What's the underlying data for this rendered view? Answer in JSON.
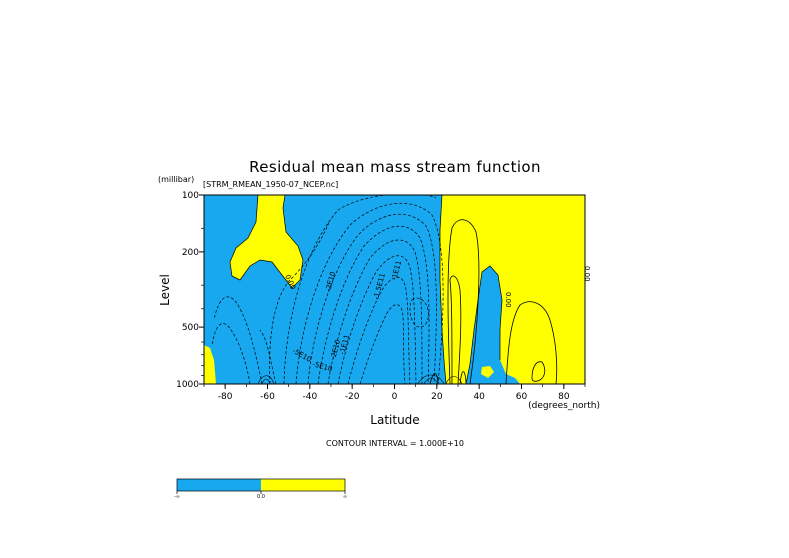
{
  "chart_data": {
    "type": "contour",
    "title": "Residual mean mass stream function",
    "subtitle": "[STRM_RMEAN_1950-07_NCEP.nc]",
    "xlabel": "Latitude",
    "x_units": "(degrees_north)",
    "ylabel": "Level",
    "y_units": "(millibar)",
    "xlim": [
      -90,
      90
    ],
    "ylim": [
      1000,
      100
    ],
    "y_scale": "log",
    "x_ticks": [
      -80,
      -60,
      -40,
      -20,
      0,
      20,
      40,
      60,
      80
    ],
    "x_tick_labels": [
      "-80",
      "-60",
      "-40",
      "-20",
      "0",
      "20",
      "40",
      "60",
      "80"
    ],
    "y_ticks": [
      100,
      200,
      500,
      1000
    ],
    "y_tick_labels": [
      "100",
      "200",
      "500",
      "1000"
    ],
    "contour_interval_text": "CONTOUR INTERVAL = 1.000E+10",
    "contour_labels": [
      "-5E10",
      "-5E10",
      "-2E10",
      "-2E10",
      "-1E11",
      "-1.5E11",
      "-1E11",
      "0.00",
      "0.00",
      "0.00"
    ],
    "fill_colors": {
      "negative": "#18a8f0",
      "positive": "#ffff00"
    },
    "colorbar": {
      "segments": [
        "#18a8f0",
        "#ffff00"
      ],
      "labels": [
        "-∞",
        "0.0",
        "∞"
      ]
    }
  }
}
